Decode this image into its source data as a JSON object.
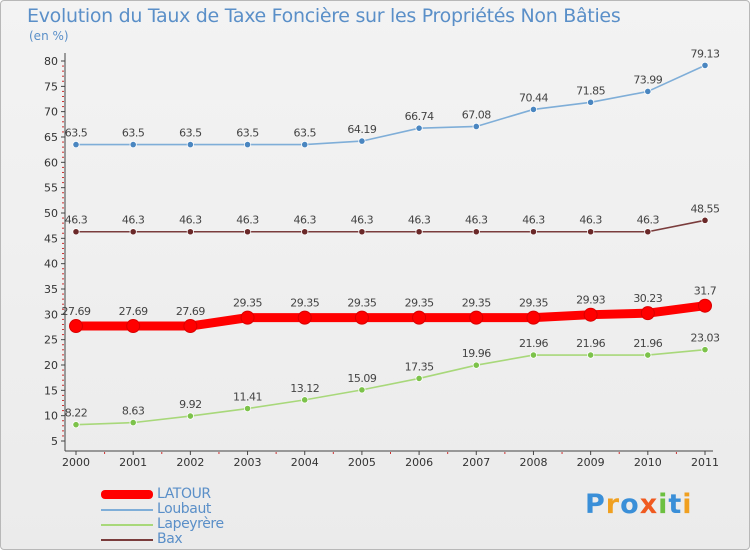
{
  "title": "Evolution du Taux de Taxe Foncière sur les Propriétés Non Bâties",
  "unit_label": "(en %)",
  "brand": "Proxiti",
  "chart_data": {
    "type": "line",
    "title": "Evolution du Taux de Taxe Foncière sur les Propriétés Non Bâties",
    "ylabel": "(en %)",
    "xlabel": "",
    "x": [
      "2000",
      "2001",
      "2002",
      "2003",
      "2004",
      "2005",
      "2006",
      "2007",
      "2008",
      "2009",
      "2010",
      "2011"
    ],
    "ylim": [
      5,
      80
    ],
    "yticks": [
      5,
      10,
      15,
      20,
      25,
      30,
      35,
      40,
      45,
      50,
      55,
      60,
      65,
      70,
      75,
      80
    ],
    "grid": false,
    "legend_position": "bottom-left",
    "series": [
      {
        "name": "Loubaut",
        "color": "#7faed8",
        "marker": "#4a86c0",
        "thick": false,
        "values": [
          63.5,
          63.5,
          63.5,
          63.5,
          63.5,
          64.19,
          66.74,
          67.08,
          70.44,
          71.85,
          73.99,
          79.13
        ],
        "labels": [
          "63.5",
          "63.5",
          "63.5",
          "63.5",
          "63.5",
          "64.19",
          "66.74",
          "67.08",
          "70.44",
          "71.85",
          "73.99",
          "79.13"
        ]
      },
      {
        "name": "Bax",
        "color": "#7a3c3c",
        "marker": "#6a2828",
        "thick": false,
        "values": [
          46.3,
          46.3,
          46.3,
          46.3,
          46.3,
          46.3,
          46.3,
          46.3,
          46.3,
          46.3,
          46.3,
          48.55
        ],
        "labels": [
          "46.3",
          "46.3",
          "46.3",
          "46.3",
          "46.3",
          "46.3",
          "46.3",
          "46.3",
          "46.3",
          "46.3",
          "46.3",
          "48.55"
        ]
      },
      {
        "name": "LATOUR",
        "color": "#ff0000",
        "marker": "#ff0000",
        "thick": true,
        "values": [
          27.69,
          27.69,
          27.69,
          29.35,
          29.35,
          29.35,
          29.35,
          29.35,
          29.35,
          29.93,
          30.23,
          31.7
        ],
        "labels": [
          "27.69",
          "27.69",
          "27.69",
          "29.35",
          "29.35",
          "29.35",
          "29.35",
          "29.35",
          "29.35",
          "29.93",
          "30.23",
          "31.7"
        ]
      },
      {
        "name": "Lapeyrère",
        "color": "#a8d87a",
        "marker": "#7cc24a",
        "thick": false,
        "values": [
          8.22,
          8.63,
          9.92,
          11.41,
          13.12,
          15.09,
          17.35,
          19.96,
          21.96,
          21.96,
          21.96,
          23.03
        ],
        "labels": [
          "8.22",
          "8.63",
          "9.92",
          "11.41",
          "13.12",
          "15.09",
          "17.35",
          "19.96",
          "21.96",
          "21.96",
          "21.96",
          "23.03"
        ]
      }
    ],
    "legend": [
      {
        "name": "LATOUR",
        "color": "#ff0000",
        "thick": true
      },
      {
        "name": "Loubaut",
        "color": "#7faed8",
        "thick": false
      },
      {
        "name": "Lapeyrère",
        "color": "#a8d87a",
        "thick": false
      },
      {
        "name": "Bax",
        "color": "#7a3c3c",
        "thick": false
      }
    ]
  }
}
